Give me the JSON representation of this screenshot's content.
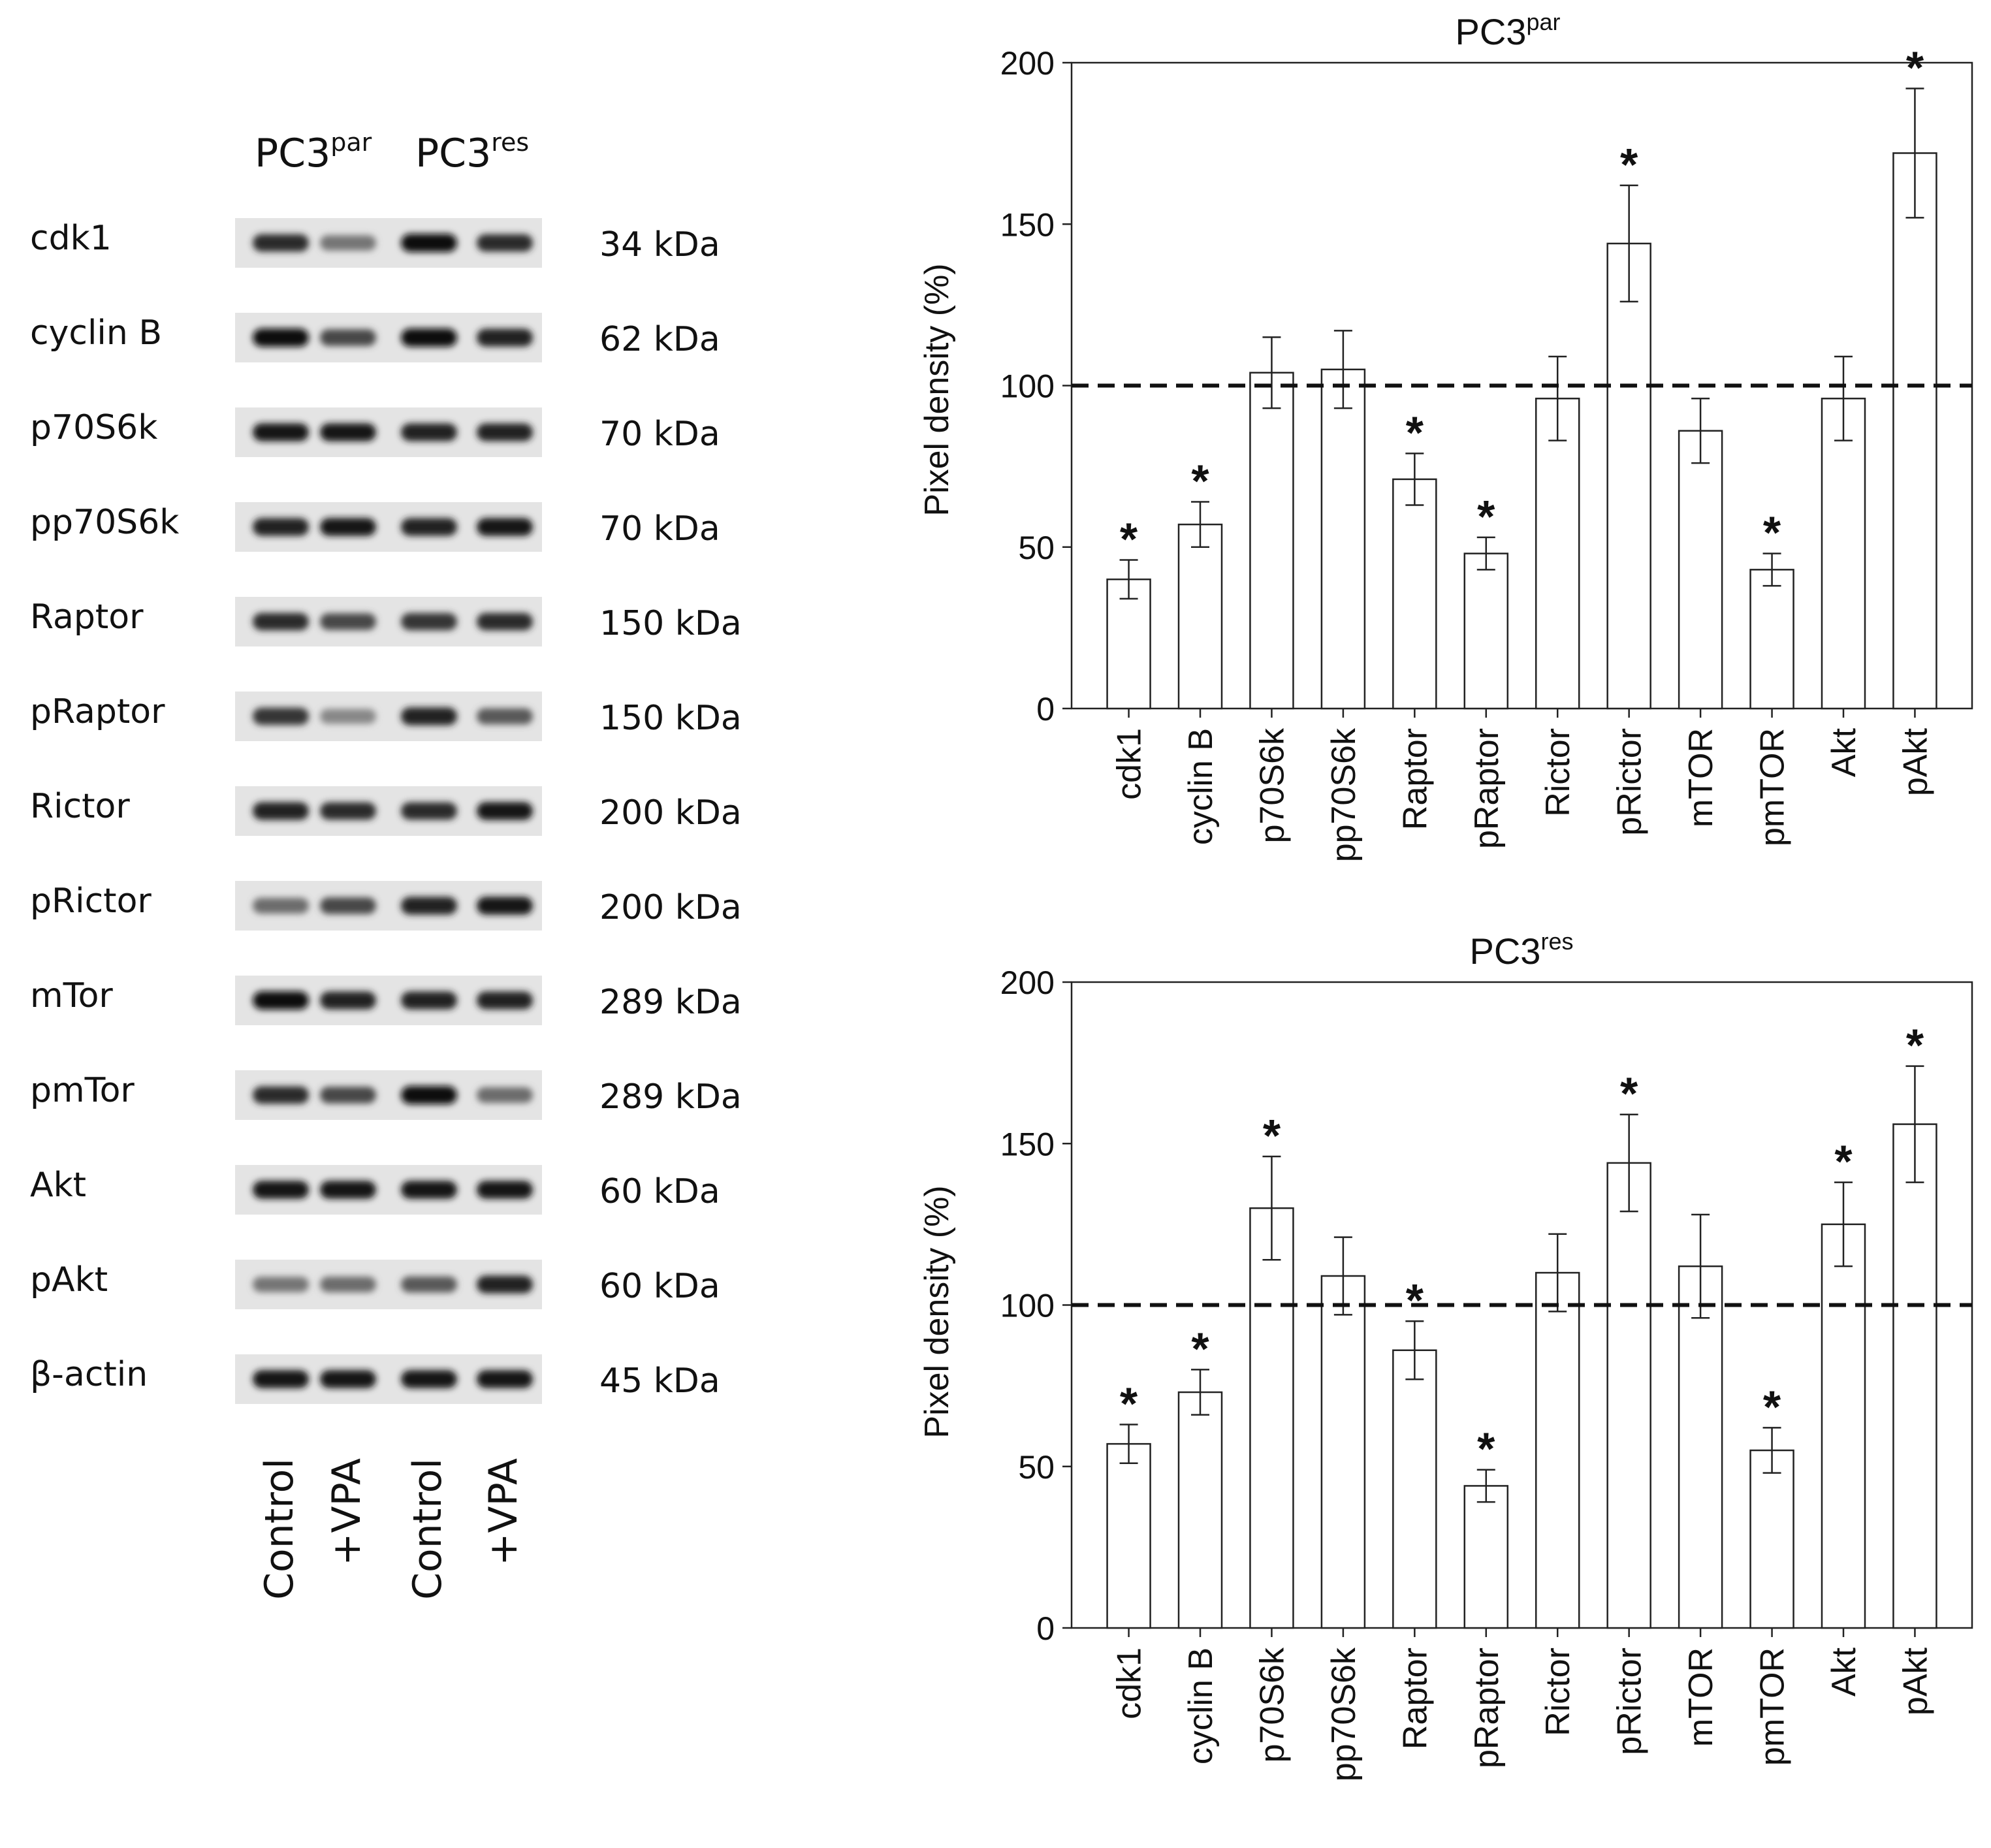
{
  "blot": {
    "groups": [
      {
        "label": "PC3",
        "sup": "par"
      },
      {
        "label": "PC3",
        "sup": "res"
      }
    ],
    "rows": [
      {
        "protein": "cdk1",
        "kda": "34 kDa",
        "bands": [
          0.85,
          0.45,
          1.0,
          0.85
        ]
      },
      {
        "protein": "cyclin B",
        "kda": "62 kDa",
        "bands": [
          1.0,
          0.7,
          1.0,
          0.9
        ]
      },
      {
        "protein": "p70S6k",
        "kda": "70 kDa",
        "bands": [
          0.95,
          0.95,
          0.9,
          0.9
        ]
      },
      {
        "protein": "pp70S6k",
        "kda": "70 kDa",
        "bands": [
          0.9,
          0.95,
          0.9,
          0.95
        ]
      },
      {
        "protein": "Raptor",
        "kda": "150 kDa",
        "bands": [
          0.85,
          0.7,
          0.8,
          0.85
        ]
      },
      {
        "protein": "pRaptor",
        "kda": "150 kDa",
        "bands": [
          0.8,
          0.35,
          0.9,
          0.6
        ]
      },
      {
        "protein": "Rictor",
        "kda": "200 kDa",
        "bands": [
          0.9,
          0.85,
          0.85,
          0.95
        ]
      },
      {
        "protein": "pRictor",
        "kda": "200 kDa",
        "bands": [
          0.5,
          0.7,
          0.9,
          0.95
        ]
      },
      {
        "protein": "mTor",
        "kda": "289 kDa",
        "bands": [
          1.0,
          0.9,
          0.9,
          0.9
        ]
      },
      {
        "protein": "pmTor",
        "kda": "289 kDa",
        "bands": [
          0.85,
          0.7,
          1.0,
          0.5
        ]
      },
      {
        "protein": "Akt",
        "kda": "60 kDa",
        "bands": [
          0.95,
          0.95,
          0.95,
          0.95
        ]
      },
      {
        "protein": "pAkt",
        "kda": "60 kDa",
        "bands": [
          0.45,
          0.5,
          0.6,
          0.9
        ]
      },
      {
        "protein": "β-actin",
        "kda": "45 kDa",
        "bands": [
          0.95,
          0.95,
          0.95,
          0.95
        ]
      }
    ],
    "lanes": [
      "Control",
      "+VPA",
      "Control",
      "+VPA"
    ]
  },
  "chart_data": [
    {
      "type": "bar",
      "title": "PC3",
      "title_sup": "par",
      "ylabel": "Pixel density (%)",
      "ylim": [
        0,
        200
      ],
      "yticks": [
        0,
        50,
        100,
        150,
        200
      ],
      "reference_line": 100,
      "categories": [
        "cdk1",
        "cyclin B",
        "p70S6k",
        "pp70S6k",
        "Raptor",
        "pRaptor",
        "Rictor",
        "pRictor",
        "mTOR",
        "pmTOR",
        "Akt",
        "pAkt"
      ],
      "values": [
        40,
        57,
        104,
        105,
        71,
        48,
        96,
        144,
        86,
        43,
        96,
        172
      ],
      "errors": [
        6,
        7,
        11,
        12,
        8,
        5,
        13,
        18,
        10,
        5,
        13,
        20
      ],
      "significant": [
        true,
        true,
        false,
        false,
        true,
        true,
        false,
        true,
        false,
        true,
        false,
        true
      ],
      "annotation": "*"
    },
    {
      "type": "bar",
      "title": "PC3",
      "title_sup": "res",
      "ylabel": "Pixel density (%)",
      "ylim": [
        0,
        200
      ],
      "yticks": [
        0,
        50,
        100,
        150,
        200
      ],
      "reference_line": 100,
      "categories": [
        "cdk1",
        "cyclin B",
        "p70S6k",
        "pp70S6k",
        "Raptor",
        "pRaptor",
        "Rictor",
        "pRictor",
        "mTOR",
        "pmTOR",
        "Akt",
        "pAkt"
      ],
      "values": [
        57,
        73,
        130,
        109,
        86,
        44,
        110,
        144,
        112,
        55,
        125,
        156
      ],
      "errors": [
        6,
        7,
        16,
        12,
        9,
        5,
        12,
        15,
        16,
        7,
        13,
        18
      ],
      "significant": [
        true,
        true,
        true,
        false,
        true,
        true,
        false,
        true,
        false,
        true,
        true,
        true
      ],
      "annotation": "*"
    }
  ]
}
